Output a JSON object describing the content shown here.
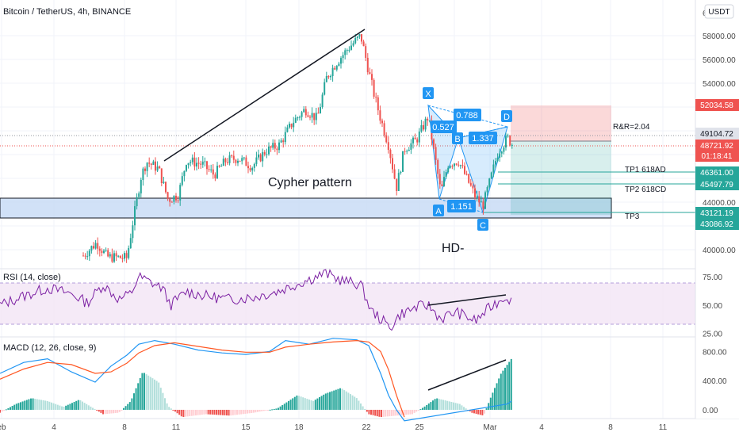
{
  "header": {
    "title": "Bitcoin / TetherUS, 4h, BINANCE",
    "currency": "USDT",
    "top_price_fragment": "6"
  },
  "colors": {
    "up": "#26a69a",
    "down": "#ef5350",
    "up_light": "#b2dfdb",
    "down_light": "#ffcdd2",
    "pattern_blue": "#2196f3",
    "zone_blue": "#c5d9f5",
    "rsi_line": "#7b1fa2",
    "rsi_band": "#f3e5f5",
    "macd_line": "#2196f3",
    "signal_line": "#ff5722",
    "text": "#131722",
    "axis_text": "#4a4a4a",
    "grid": "#f0f3fa"
  },
  "chart_data": [
    {
      "type": "candlestick",
      "title": "Bitcoin / TetherUS, 4h, BINANCE",
      "ylim": [
        38400,
        61000
      ],
      "y_ticks": [
        40000,
        42000,
        44000,
        46000,
        48000,
        50000,
        52000,
        54000,
        56000,
        58000
      ],
      "y_tick_labels": [
        "40000.00",
        "",
        "44000.00",
        "",
        "48000.00",
        "",
        "52000.00",
        "54000.00",
        "56000.00",
        "58000.00"
      ],
      "x_ticks": [
        "eb",
        "4",
        "8",
        "11",
        "15",
        "18",
        "22",
        "25",
        "",
        "Mar",
        "4",
        "8",
        "11"
      ],
      "annotations": {
        "pattern_label": "Cypher pattern",
        "divergence_label": "HD-",
        "points": [
          "X",
          "A",
          "B",
          "C",
          "D"
        ],
        "ratios": [
          "0.527",
          "0.788",
          "1.337",
          "1.151"
        ],
        "rr": "R&R=2.04",
        "targets": [
          "TP1  618AD",
          "TP2  618CD",
          "TP3"
        ]
      },
      "price_labels": [
        {
          "label": "52034.58",
          "value": 52034.58,
          "color": "#ef5350"
        },
        {
          "label": "49104.72",
          "value": 49104.72,
          "color": "#e0e3eb"
        },
        {
          "label": "48721.92",
          "value": 48721.92,
          "color": "#ef5350"
        },
        {
          "label": "01:18:41",
          "value": 47950,
          "color": "#ef5350"
        },
        {
          "label": "46361.00",
          "value": 46361.0,
          "color": "#26a69a"
        },
        {
          "label": "45497.79",
          "value": 45497.79,
          "color": "#26a69a"
        },
        {
          "label": "43121.19",
          "value": 43121.19,
          "color": "#26a69a"
        },
        {
          "label": "43086.92",
          "value": 43086.92,
          "color": "#26a69a"
        }
      ]
    },
    {
      "type": "line",
      "title": "RSI (14, close)",
      "ylim": [
        22,
        82
      ],
      "y_ticks": [
        25,
        50,
        75
      ],
      "y_tick_labels": [
        "25.00",
        "50.00",
        "75.00"
      ]
    },
    {
      "type": "bar",
      "title": "MACD (12, 26, close, 9)",
      "ylim": [
        -120,
        1000
      ],
      "y_ticks": [
        0,
        400,
        800
      ],
      "y_tick_labels": [
        "0.00",
        "400.00",
        "800.00"
      ]
    }
  ]
}
